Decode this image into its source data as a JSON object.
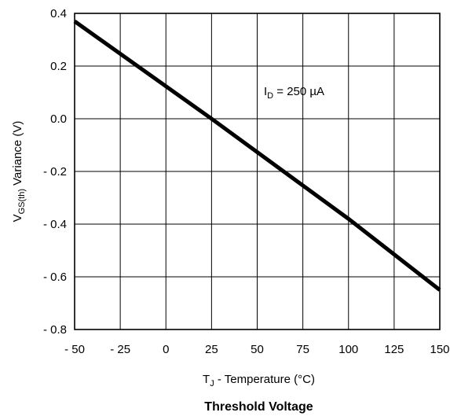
{
  "chart_data": {
    "type": "line",
    "title": "Threshold Voltage",
    "xlabel": {
      "main": "T",
      "sub": "J",
      "rest": " - Temperature (°C)"
    },
    "ylabel": {
      "main": "V",
      "sub": "GS(th)",
      "rest": "  Variance (V)"
    },
    "annotation": {
      "main": "I",
      "sub": "D",
      "rest": " = 250 µA"
    },
    "xlim": [
      -50,
      150
    ],
    "ylim": [
      -0.8,
      0.4
    ],
    "x_ticks": [
      -50,
      -25,
      0,
      25,
      50,
      75,
      100,
      125,
      150
    ],
    "x_tick_labels": [
      "- 50",
      "- 25",
      "0",
      "25",
      "50",
      "75",
      "100",
      "125",
      "150"
    ],
    "y_ticks": [
      0.4,
      0.2,
      0.0,
      -0.2,
      -0.4,
      -0.6,
      -0.8
    ],
    "y_tick_labels": [
      "0.4",
      "0.2",
      "0.0",
      "- 0.2",
      "- 0.4",
      "- 0.6",
      "- 0.8"
    ],
    "grid": true,
    "series": [
      {
        "x": [
          -50,
          25,
          100,
          150
        ],
        "y": [
          0.37,
          0.0,
          -0.38,
          -0.65
        ]
      }
    ],
    "line_color": "#000000"
  }
}
